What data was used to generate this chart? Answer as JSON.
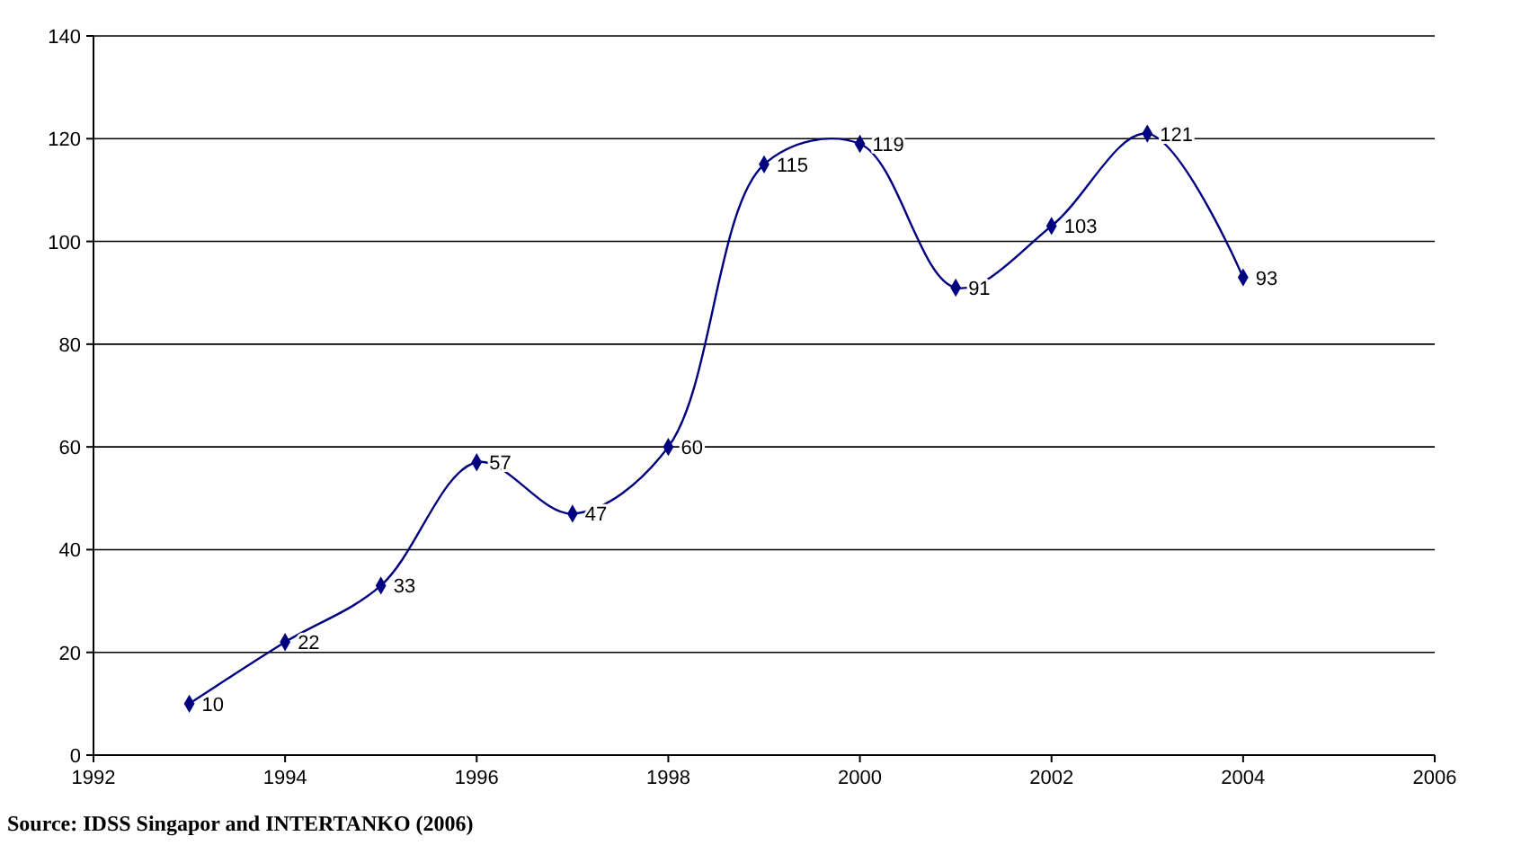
{
  "chart_data": {
    "type": "line",
    "x": [
      1993,
      1994,
      1995,
      1996,
      1997,
      1998,
      1999,
      2000,
      2001,
      2002,
      2003,
      2004
    ],
    "series": [
      {
        "color": "#000080",
        "values": [
          10,
          22,
          33,
          57,
          47,
          60,
          115,
          119,
          91,
          103,
          121,
          93
        ]
      }
    ],
    "xlim": [
      1992,
      2006
    ],
    "xticks": [
      1992,
      1994,
      1996,
      1998,
      2000,
      2002,
      2004,
      2006
    ],
    "ylim": [
      0,
      140
    ],
    "yticks": [
      0,
      20,
      40,
      60,
      80,
      100,
      120,
      140
    ],
    "grid": "y",
    "marker": "diamond",
    "line_style": "solid",
    "data_labels": true,
    "annotations": [
      "Source: IDSS Singapor and INTERTANKO (2006)"
    ]
  }
}
